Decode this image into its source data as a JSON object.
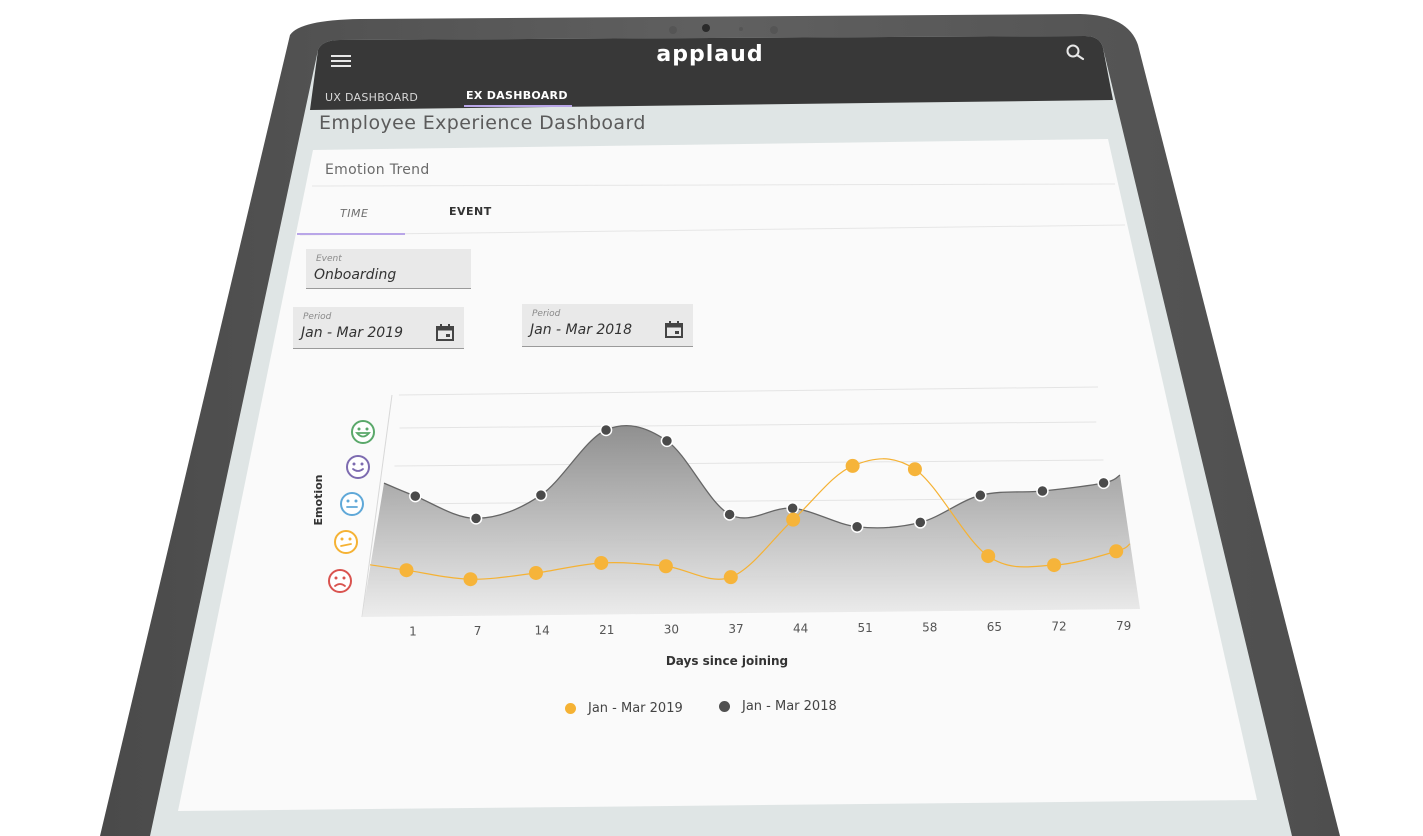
{
  "app": {
    "brand": "applaud"
  },
  "nav": {
    "tabs": [
      {
        "label": "UX DASHBOARD",
        "active": false
      },
      {
        "label": "EX DASHBOARD",
        "active": true
      }
    ]
  },
  "page": {
    "title": "Employee Experience Dashboard"
  },
  "card": {
    "title": "Emotion Trend",
    "tabs": [
      {
        "label": "TIME",
        "active": true
      },
      {
        "label": "EVENT",
        "active": false
      }
    ],
    "event_field": {
      "label": "Event",
      "value": "Onboarding"
    },
    "period_fields": [
      {
        "label": "Period",
        "value": "Jan - Mar 2019"
      },
      {
        "label": "Period",
        "value": "Jan - Mar 2018"
      }
    ]
  },
  "chart_data": {
    "type": "line",
    "xlabel": "Days since joining",
    "ylabel": "Emotion",
    "categories": [
      "1",
      "7",
      "14",
      "21",
      "30",
      "37",
      "44",
      "51",
      "58",
      "65",
      "72",
      "79"
    ],
    "y_levels": [
      "very sad",
      "worried",
      "neutral",
      "happy",
      "very happy"
    ],
    "ylim": [
      1,
      5
    ],
    "series": [
      {
        "name": "Jan - Mar 2019",
        "color": "#f5b234",
        "values": [
          1.25,
          1.0,
          1.15,
          1.4,
          1.3,
          1.0,
          2.5,
          3.9,
          3.8,
          1.5,
          1.25,
          1.6
        ]
      },
      {
        "name": "Jan - Mar 2018",
        "color": "#505050",
        "values": [
          3.2,
          2.6,
          3.2,
          4.9,
          4.6,
          2.65,
          2.8,
          2.3,
          2.4,
          3.1,
          3.2,
          3.4
        ]
      }
    ],
    "legend_position": "bottom",
    "grid": true
  },
  "colors": {
    "header": "#3a3a3a",
    "frame": "#5a5a5a",
    "accent": "#b9a6e8",
    "background": "#dde3e3",
    "card": "#fafafa"
  }
}
